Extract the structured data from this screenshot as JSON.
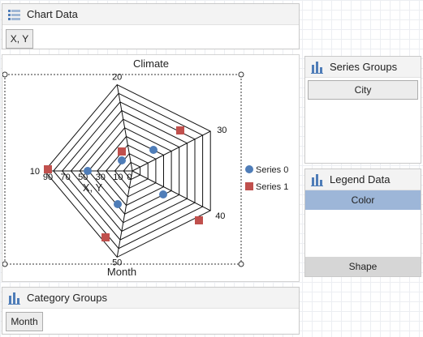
{
  "chart_data_panel": {
    "title": "Chart Data",
    "value_chip": "X, Y"
  },
  "category_groups_panel": {
    "title": "Category Groups",
    "chip": "Month"
  },
  "series_groups_panel": {
    "title": "Series Groups",
    "field": "City"
  },
  "legend_data_panel": {
    "title": "Legend Data",
    "color_row": "Color",
    "shape_row": "Shape"
  },
  "chart_data": {
    "type": "radar",
    "title": "Climate",
    "xlabel": "Month",
    "ylabel": "X, Y",
    "categories": [
      "20",
      "30",
      "40",
      "50",
      "10"
    ],
    "axis_tick_labels": [
      "90",
      "70",
      "50",
      "30",
      "10",
      "0"
    ],
    "legend_placement": "right",
    "series": [
      {
        "name": "Series 0",
        "marker": "circle",
        "color": "#4f7db8"
      },
      {
        "name": "Series 1",
        "marker": "square",
        "color": "#c0504d"
      }
    ]
  },
  "colors": {
    "accent_blue": "#9fb7d5",
    "selected_row": "#9db6d8",
    "panel_header": "#f3f3f3",
    "border": "#c9c9c9"
  },
  "icons": {
    "panel_icon": "chart-icon"
  }
}
